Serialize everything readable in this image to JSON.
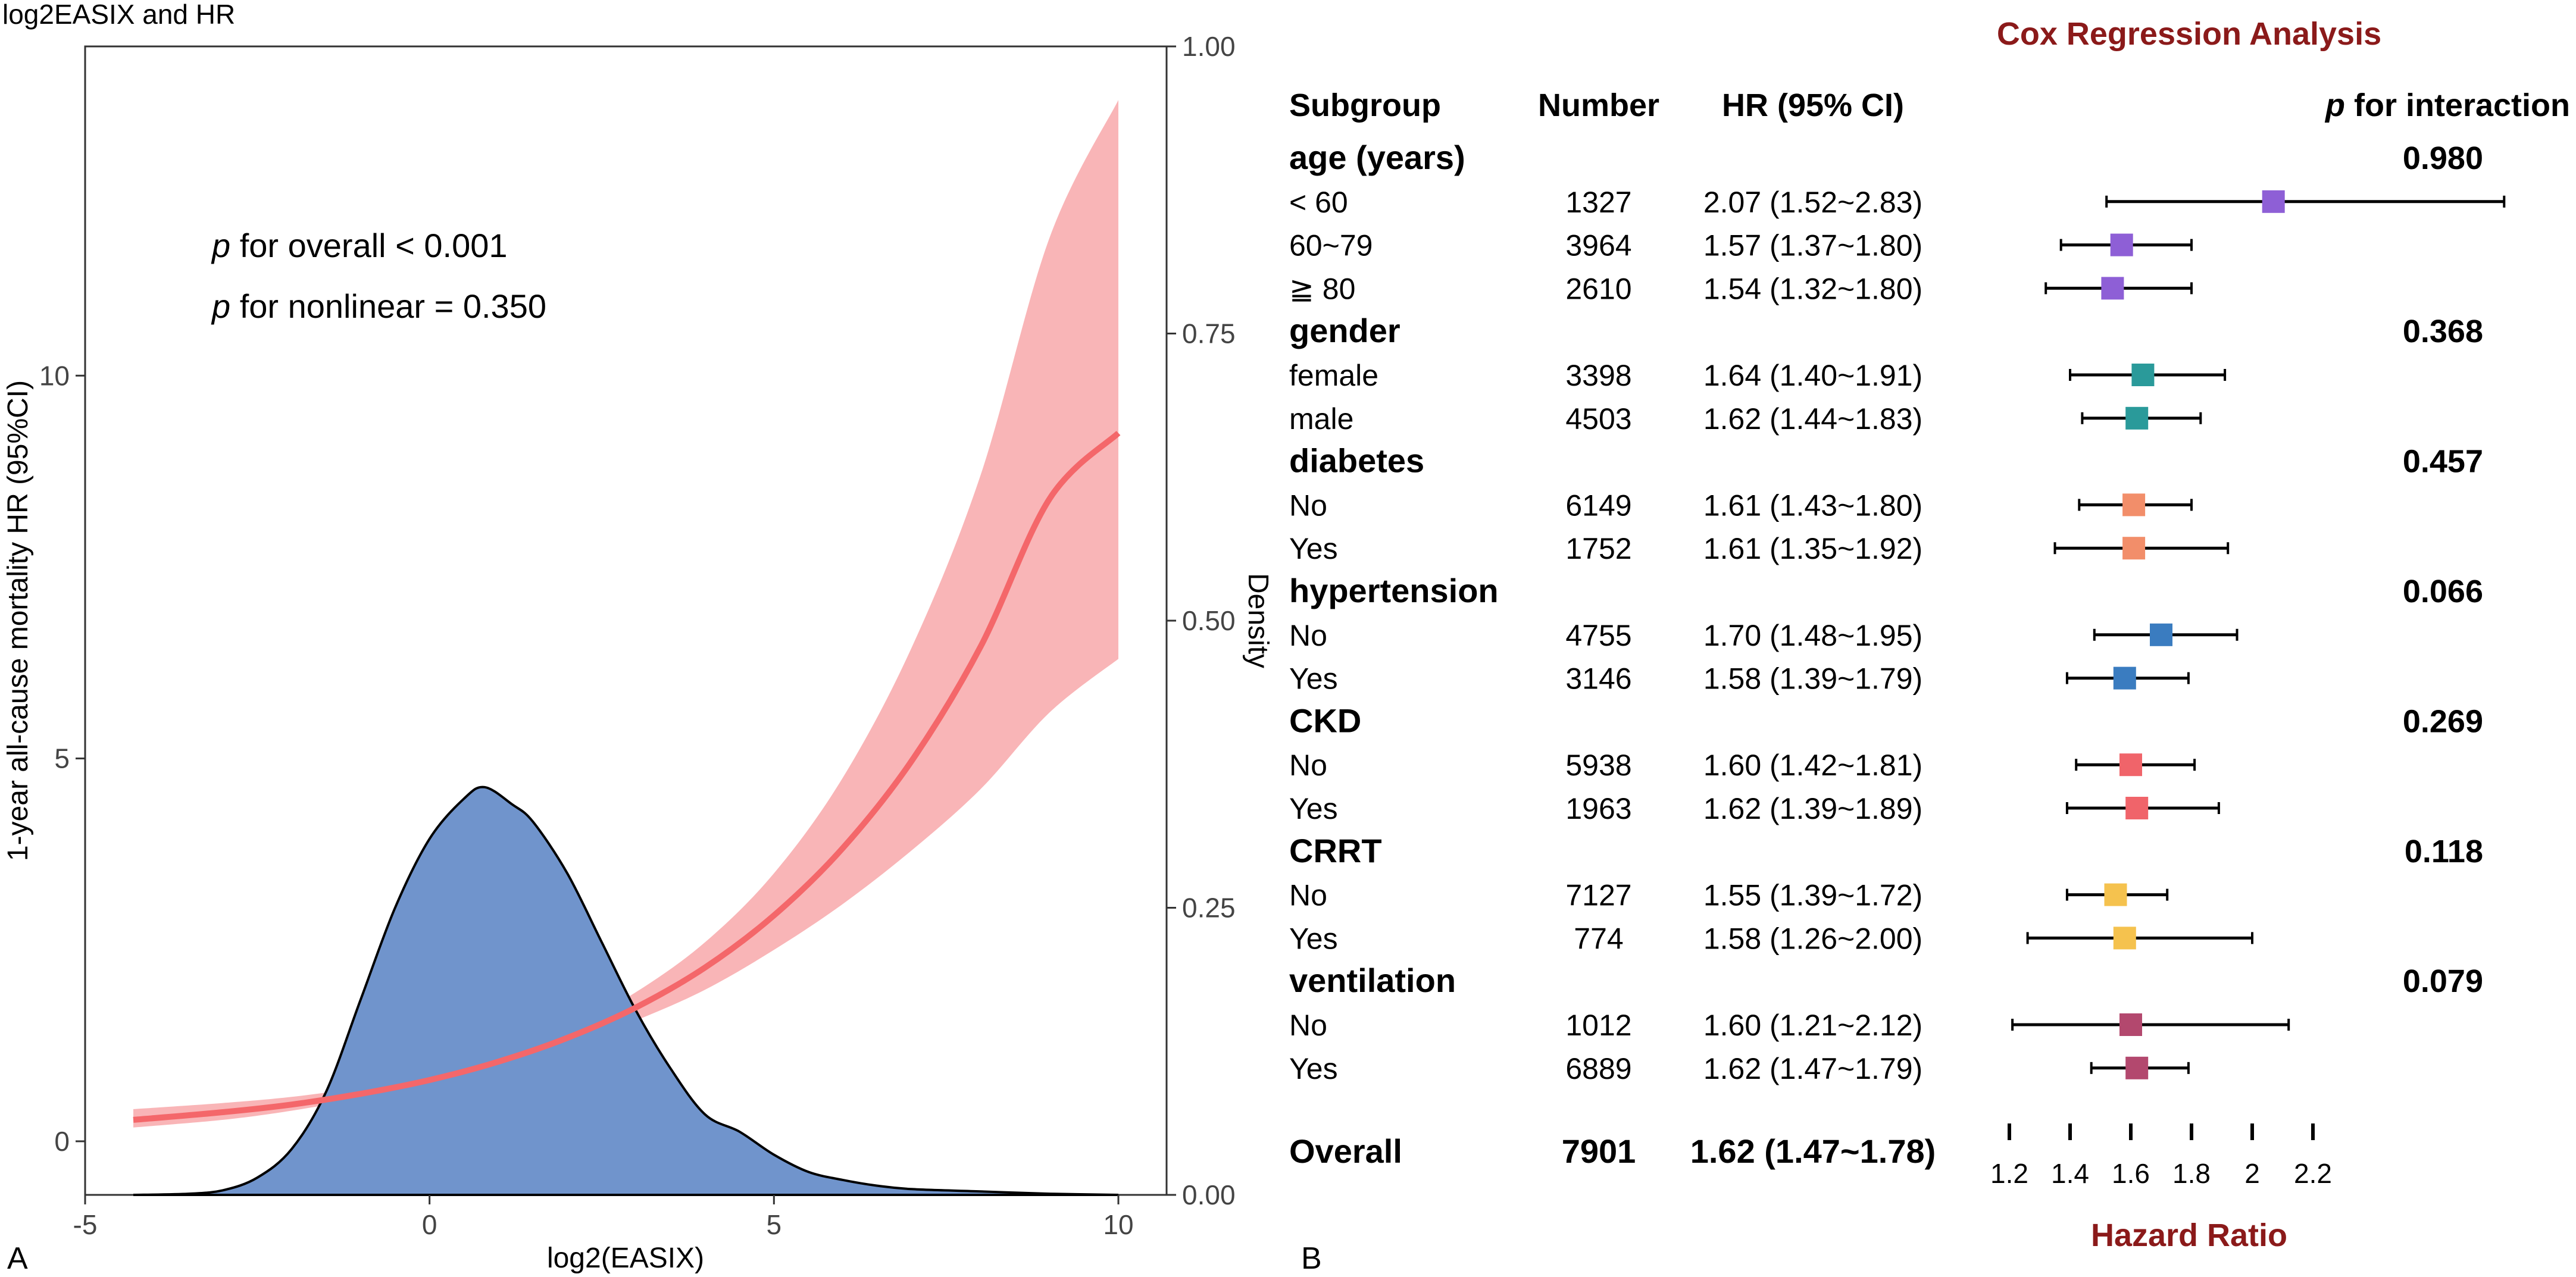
{
  "colors": {
    "density_fill": "#7094cc",
    "curve": "#f4676a",
    "band": "#f9b5b7",
    "interaction_title": "#8b1a1a",
    "age": "#8e5fd6",
    "gender": "#2a9a9a",
    "diabetes": "#f28e6a",
    "hypertension": "#3a7cc0",
    "ckd": "#f0646a",
    "crrt": "#f5c24e",
    "ventilation": "#b3486e"
  },
  "chart_data": [
    {
      "type": "line",
      "panel_label": "A",
      "title": "log2EASIX and HR",
      "xlabel": "log2(EASIX)",
      "ylabel": "1-year all-cause mortality HR (95%CI)",
      "y2label": "Density",
      "xlim": [
        -5,
        10.7
      ],
      "ylim": [
        -0.7,
        14.3
      ],
      "y2lim": [
        0,
        1
      ],
      "x_ticks": [
        "-5",
        "0",
        "5",
        "10"
      ],
      "x_tick_values": [
        -5,
        0,
        5,
        10
      ],
      "y_ticks": [
        "0",
        "5",
        "10"
      ],
      "y_tick_values": [
        0,
        5,
        10
      ],
      "y2_ticks": [
        "0.00",
        "0.25",
        "0.50",
        "0.75",
        "1.00"
      ],
      "y2_tick_values": [
        0,
        0.25,
        0.5,
        0.75,
        1.0
      ],
      "annotations": [
        {
          "italic": "p",
          "text": " for overall < 0.001"
        },
        {
          "italic": "p",
          "text": " for nonlinear = 0.350"
        }
      ],
      "hr_curve": {
        "x": [
          -4.3,
          -3,
          -2,
          -1,
          0,
          1,
          2,
          3,
          4,
          5,
          6,
          7,
          8,
          9,
          10
        ],
        "hr": [
          0.28,
          0.38,
          0.48,
          0.62,
          0.8,
          1.04,
          1.35,
          1.75,
          2.27,
          2.95,
          3.83,
          4.97,
          6.46,
          8.39,
          9.25
        ],
        "lower": [
          0.18,
          0.28,
          0.4,
          0.56,
          0.76,
          1.0,
          1.25,
          1.58,
          1.98,
          2.5,
          3.1,
          3.8,
          4.6,
          5.6,
          6.3
        ],
        "upper": [
          0.42,
          0.5,
          0.58,
          0.7,
          0.85,
          1.1,
          1.46,
          1.95,
          2.6,
          3.5,
          4.75,
          6.45,
          8.7,
          11.8,
          13.6
        ]
      },
      "density": {
        "x": [
          -4.3,
          -3.5,
          -3,
          -2.5,
          -2,
          -1.5,
          -1,
          -0.5,
          0,
          0.5,
          0.8,
          1.2,
          1.5,
          2,
          2.5,
          3,
          3.5,
          4,
          4.5,
          5,
          5.5,
          6,
          6.5,
          7,
          8,
          9,
          10
        ],
        "y": [
          0.0,
          0.001,
          0.004,
          0.015,
          0.04,
          0.09,
          0.17,
          0.25,
          0.31,
          0.345,
          0.355,
          0.34,
          0.325,
          0.28,
          0.22,
          0.16,
          0.11,
          0.07,
          0.055,
          0.035,
          0.02,
          0.013,
          0.008,
          0.005,
          0.003,
          0.001,
          0.0
        ]
      }
    },
    {
      "type": "forest",
      "panel_label": "B",
      "title": "Cox Regression Analysis",
      "xlabel": "Hazard Ratio",
      "headers": {
        "subgroup": "Subgroup",
        "number": "Number",
        "hr": "HR (95% CI)",
        "p_italic": "p",
        "p_text": " for interaction"
      },
      "xlim": [
        1.2,
        2.2
      ],
      "x_ticks": [
        "1.2",
        "1.4",
        "1.6",
        "1.8",
        "2",
        "2.2"
      ],
      "x_tick_values": [
        1.2,
        1.4,
        1.6,
        1.8,
        2.0,
        2.2
      ],
      "rows": [
        {
          "kind": "group",
          "label": "age (years)",
          "p": "0.980"
        },
        {
          "kind": "item",
          "label": "< 60",
          "number": "1327",
          "hr_text": "2.07 (1.52~2.83)",
          "hr": 2.07,
          "lo": 1.52,
          "hi": 2.83,
          "color": "age"
        },
        {
          "kind": "item",
          "label": "60~79",
          "number": "3964",
          "hr_text": "1.57 (1.37~1.80)",
          "hr": 1.57,
          "lo": 1.37,
          "hi": 1.8,
          "color": "age"
        },
        {
          "kind": "item",
          "label": "≧ 80",
          "number": "2610",
          "hr_text": "1.54 (1.32~1.80)",
          "hr": 1.54,
          "lo": 1.32,
          "hi": 1.8,
          "color": "age"
        },
        {
          "kind": "group",
          "label": "gender",
          "p": "0.368"
        },
        {
          "kind": "item",
          "label": "female",
          "number": "3398",
          "hr_text": "1.64 (1.40~1.91)",
          "hr": 1.64,
          "lo": 1.4,
          "hi": 1.91,
          "color": "gender"
        },
        {
          "kind": "item",
          "label": "male",
          "number": "4503",
          "hr_text": "1.62 (1.44~1.83)",
          "hr": 1.62,
          "lo": 1.44,
          "hi": 1.83,
          "color": "gender"
        },
        {
          "kind": "group",
          "label": "diabetes",
          "p": "0.457"
        },
        {
          "kind": "item",
          "label": "No",
          "number": "6149",
          "hr_text": "1.61 (1.43~1.80)",
          "hr": 1.61,
          "lo": 1.43,
          "hi": 1.8,
          "color": "diabetes"
        },
        {
          "kind": "item",
          "label": "Yes",
          "number": "1752",
          "hr_text": "1.61 (1.35~1.92)",
          "hr": 1.61,
          "lo": 1.35,
          "hi": 1.92,
          "color": "diabetes"
        },
        {
          "kind": "group",
          "label": "hypertension",
          "p": "0.066"
        },
        {
          "kind": "item",
          "label": "No",
          "number": "4755",
          "hr_text": "1.70 (1.48~1.95)",
          "hr": 1.7,
          "lo": 1.48,
          "hi": 1.95,
          "color": "hypertension"
        },
        {
          "kind": "item",
          "label": "Yes",
          "number": "3146",
          "hr_text": "1.58 (1.39~1.79)",
          "hr": 1.58,
          "lo": 1.39,
          "hi": 1.79,
          "color": "hypertension"
        },
        {
          "kind": "group",
          "label": "CKD",
          "p": "0.269"
        },
        {
          "kind": "item",
          "label": "No",
          "number": "5938",
          "hr_text": "1.60 (1.42~1.81)",
          "hr": 1.6,
          "lo": 1.42,
          "hi": 1.81,
          "color": "ckd"
        },
        {
          "kind": "item",
          "label": "Yes",
          "number": "1963",
          "hr_text": "1.62 (1.39~1.89)",
          "hr": 1.62,
          "lo": 1.39,
          "hi": 1.89,
          "color": "ckd"
        },
        {
          "kind": "group",
          "label": "CRRT",
          "p": "0.118"
        },
        {
          "kind": "item",
          "label": "No",
          "number": "7127",
          "hr_text": "1.55 (1.39~1.72)",
          "hr": 1.55,
          "lo": 1.39,
          "hi": 1.72,
          "color": "crrt"
        },
        {
          "kind": "item",
          "label": "Yes",
          "number": "774",
          "hr_text": "1.58 (1.26~2.00)",
          "hr": 1.58,
          "lo": 1.26,
          "hi": 2.0,
          "color": "crrt"
        },
        {
          "kind": "group",
          "label": "ventilation",
          "p": "0.079"
        },
        {
          "kind": "item",
          "label": "No",
          "number": "1012",
          "hr_text": "1.60 (1.21~2.12)",
          "hr": 1.6,
          "lo": 1.21,
          "hi": 2.12,
          "color": "ventilation"
        },
        {
          "kind": "item",
          "label": "Yes",
          "number": "6889",
          "hr_text": "1.62 (1.47~1.79)",
          "hr": 1.62,
          "lo": 1.47,
          "hi": 1.79,
          "color": "ventilation"
        }
      ],
      "overall": {
        "label": "Overall",
        "number": "7901",
        "hr_text": "1.62 (1.47~1.78)"
      }
    }
  ]
}
